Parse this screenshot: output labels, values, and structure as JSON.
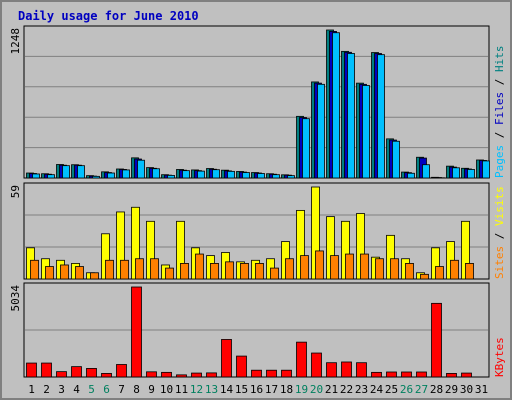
{
  "chart_data": {
    "type": "bar",
    "title": "Daily usage for June 2010",
    "categories": [
      "1",
      "2",
      "3",
      "4",
      "5",
      "6",
      "7",
      "8",
      "9",
      "10",
      "11",
      "12",
      "13",
      "14",
      "15",
      "16",
      "17",
      "18",
      "19",
      "20",
      "21",
      "22",
      "23",
      "24",
      "25",
      "26",
      "27",
      "28",
      "29",
      "30",
      "31"
    ],
    "weekend_days": [
      "5",
      "6",
      "12",
      "13",
      "19",
      "20",
      "26",
      "27"
    ],
    "panels": [
      {
        "name": "top",
        "ylim": [
          0,
          1248
        ],
        "max_label": "1248",
        "legend": [
          "Pages",
          "Files",
          "Hits"
        ],
        "legend_colors": [
          "#00c0ff",
          "#0000c0",
          "#008080"
        ],
        "series": [
          {
            "name": "Hits",
            "color": "#008080",
            "values": [
              42,
              36,
              114,
              112,
              20,
              52,
              76,
              170,
              88,
              28,
              72,
              68,
              80,
              66,
              55,
              46,
              36,
              27,
              520,
              810,
              1248,
              1068,
              800,
              1058,
              330,
              50,
              175,
              6,
              100,
              82,
              152
            ]
          },
          {
            "name": "Files",
            "color": "#0000c0",
            "values": [
              38,
              32,
              108,
              108,
              16,
              46,
              72,
              160,
              82,
              24,
              66,
              62,
              74,
              60,
              50,
              42,
              32,
              24,
              510,
              800,
              1236,
              1060,
              790,
              1050,
              320,
              45,
              168,
              4,
              92,
              76,
              148
            ]
          },
          {
            "name": "Pages",
            "color": "#00c0ff",
            "values": [
              34,
              28,
              104,
              104,
              14,
              42,
              68,
              150,
              78,
              22,
              62,
              58,
              70,
              56,
              46,
              38,
              28,
              20,
              500,
              790,
              1225,
              1050,
              780,
              1040,
              310,
              40,
              112,
              2,
              86,
              72,
              144
            ]
          }
        ]
      },
      {
        "name": "middle",
        "ylim": [
          0,
          59
        ],
        "max_label": "59",
        "legend": [
          "Sites",
          "Visits"
        ],
        "legend_colors": [
          "#ff8000",
          "#ffff00"
        ],
        "series": [
          {
            "name": "Visits",
            "color": "#ffff00",
            "values": [
              20,
              13,
              12,
              10,
              4,
              29,
              43,
              46,
              37,
              9,
              37,
              20,
              15,
              17,
              11,
              12,
              13,
              24,
              44,
              59,
              40,
              37,
              42,
              14,
              28,
              13,
              4,
              20,
              24,
              37,
              0
            ]
          },
          {
            "name": "Sites",
            "color": "#ff8000",
            "values": [
              12,
              8,
              9,
              8,
              4,
              12,
              12,
              13,
              13,
              7,
              10,
              16,
              10,
              11,
              10,
              10,
              7,
              13,
              15,
              18,
              15,
              16,
              16,
              13,
              13,
              10,
              3,
              8,
              12,
              10,
              0
            ]
          }
        ]
      },
      {
        "name": "bottom",
        "ylim": [
          0,
          5034
        ],
        "max_label": "5034",
        "legend": [
          "KBytes"
        ],
        "legend_colors": [
          "#ff0000"
        ],
        "series": [
          {
            "name": "KBytes",
            "color": "#ff0000",
            "values": [
              780,
              780,
              300,
              580,
              480,
              200,
              700,
              5034,
              290,
              260,
              120,
              220,
              230,
              2100,
              1170,
              380,
              380,
              380,
              1950,
              1340,
              800,
              840,
              800,
              260,
              280,
              280,
              280,
              4120,
              200,
              220,
              0
            ]
          }
        ]
      }
    ]
  }
}
